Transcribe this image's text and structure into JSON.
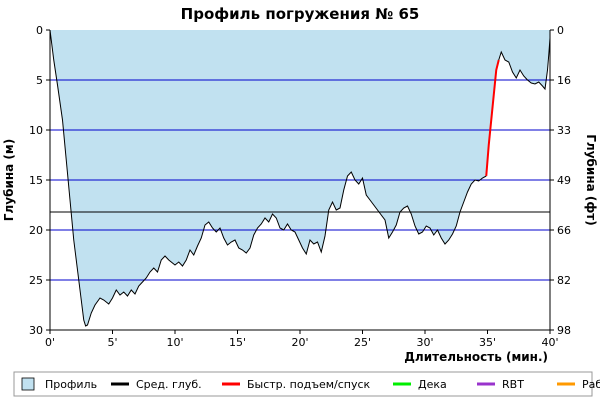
{
  "chart_data": {
    "type": "area",
    "title": "Профиль погружения № 65",
    "xlabel": "Длительность (мин.)",
    "ylabel_left": "Глубина (м)",
    "ylabel_right": "Глубина (фт)",
    "xlim": [
      0,
      40
    ],
    "ylim": [
      0,
      30
    ],
    "y_inverted": true,
    "x_ticks": [
      0,
      5,
      10,
      15,
      20,
      25,
      30,
      35,
      40
    ],
    "x_tick_labels": [
      "0'",
      "5'",
      "10'",
      "15'",
      "20'",
      "25'",
      "30'",
      "35'",
      "40'"
    ],
    "y_ticks_left": [
      0,
      5,
      10,
      15,
      20,
      25,
      30
    ],
    "y_tick_labels_left": [
      "0",
      "5",
      "10",
      "15",
      "20",
      "25",
      "30"
    ],
    "y_tick_labels_right": [
      "0",
      "16",
      "33",
      "49",
      "66",
      "82",
      "98"
    ],
    "horizontal_gridlines": true,
    "average_depth": 18.2,
    "profile": {
      "name": "Профиль",
      "x": [
        0,
        0.1,
        0.3,
        0.6,
        1.0,
        1.3,
        1.6,
        1.9,
        2.2,
        2.5,
        2.7,
        2.85,
        3.0,
        3.3,
        3.6,
        4.0,
        4.3,
        4.7,
        5.0,
        5.3,
        5.6,
        5.9,
        6.2,
        6.5,
        6.8,
        7.1,
        7.4,
        7.7,
        8.0,
        8.3,
        8.6,
        8.9,
        9.2,
        9.5,
        9.8,
        10.0,
        10.3,
        10.6,
        10.9,
        11.2,
        11.5,
        11.8,
        12.1,
        12.4,
        12.7,
        13.0,
        13.3,
        13.6,
        13.9,
        14.2,
        14.5,
        14.8,
        15.1,
        15.4,
        15.7,
        16.0,
        16.3,
        16.6,
        16.9,
        17.2,
        17.5,
        17.8,
        18.1,
        18.4,
        18.7,
        19.0,
        19.3,
        19.6,
        19.9,
        20.2,
        20.5,
        20.8,
        21.1,
        21.4,
        21.7,
        22.0,
        22.3,
        22.6,
        22.9,
        23.2,
        23.5,
        23.8,
        24.1,
        24.4,
        24.7,
        25.0,
        25.3,
        25.6,
        25.9,
        26.2,
        26.5,
        26.8,
        27.1,
        27.4,
        27.7,
        28.0,
        28.3,
        28.6,
        28.9,
        29.2,
        29.5,
        29.8,
        30.1,
        30.4,
        30.7,
        31.0,
        31.3,
        31.6,
        31.9,
        32.2,
        32.5,
        32.8,
        33.1,
        33.4,
        33.7,
        34.0,
        34.3,
        34.6,
        34.9
      ],
      "depth": [
        0,
        1.0,
        3.0,
        5.5,
        9.0,
        13.0,
        17.0,
        21.0,
        24.0,
        27.0,
        29.0,
        29.6,
        29.5,
        28.3,
        27.5,
        26.8,
        27.0,
        27.4,
        26.8,
        26.0,
        26.5,
        26.2,
        26.6,
        26.0,
        26.4,
        25.6,
        25.2,
        24.8,
        24.2,
        23.8,
        24.2,
        23.0,
        22.6,
        23.0,
        23.3,
        23.5,
        23.2,
        23.6,
        23.0,
        22.0,
        22.5,
        21.6,
        20.8,
        19.5,
        19.2,
        19.8,
        20.2,
        19.8,
        20.8,
        21.5,
        21.2,
        21.0,
        21.8,
        22.0,
        22.3,
        21.8,
        20.5,
        19.8,
        19.4,
        18.8,
        19.2,
        18.4,
        18.8,
        19.8,
        20.0,
        19.4,
        20.0,
        20.2,
        21.0,
        21.8,
        22.4,
        21.0,
        21.4,
        21.2,
        22.2,
        20.6,
        18.0,
        17.2,
        18.0,
        17.8,
        16.0,
        14.6,
        14.2,
        15.0,
        15.4,
        14.8,
        16.5,
        17.0,
        17.5,
        18.0,
        18.5,
        19.0,
        20.8,
        20.2,
        19.5,
        18.2,
        17.8,
        17.6,
        18.4,
        19.6,
        20.4,
        20.2,
        19.6,
        19.8,
        20.5,
        20.0,
        20.8,
        21.4,
        21.0,
        20.4,
        19.6,
        18.2,
        17.2,
        16.2,
        15.4,
        15.0,
        15.1,
        14.8,
        14.6
      ],
      "color_fill": "#c1e1f0",
      "color_line": "#000000"
    },
    "fast_ascent": {
      "name": "Быстр. подъем/спуск",
      "x": [
        34.9,
        35.1,
        35.3,
        35.5,
        35.7,
        35.9
      ],
      "depth": [
        14.6,
        11.5,
        9.0,
        6.5,
        4.0,
        3.0
      ],
      "color": "#ff0000"
    },
    "surface_segment": {
      "x": [
        35.9,
        36.1,
        36.4,
        36.7,
        37.0,
        37.3,
        37.6,
        37.9,
        38.2,
        38.5,
        38.8,
        39.1,
        39.4,
        39.6,
        39.8,
        39.9,
        40.0
      ],
      "depth": [
        3.0,
        2.2,
        3.0,
        3.2,
        4.2,
        4.8,
        4.0,
        4.6,
        5.0,
        5.3,
        5.4,
        5.2,
        5.6,
        5.9,
        4.0,
        2.5,
        0.8
      ]
    },
    "legend": [
      {
        "label": "Профиль",
        "kind": "box",
        "color": "#c1e1f0"
      },
      {
        "label": "Сред. глуб.",
        "kind": "line",
        "color": "#000000"
      },
      {
        "label": "Быстр. подъем/спуск",
        "kind": "line",
        "color": "#ff0000"
      },
      {
        "label": "Дека",
        "kind": "line",
        "color": "#00ee00"
      },
      {
        "label": "RBT",
        "kind": "line",
        "color": "#9933cc"
      },
      {
        "label": "Раб.",
        "kind": "line",
        "color": "#ff9900"
      }
    ],
    "legend_placement": "bottom",
    "grid_color": "#0000cc"
  }
}
